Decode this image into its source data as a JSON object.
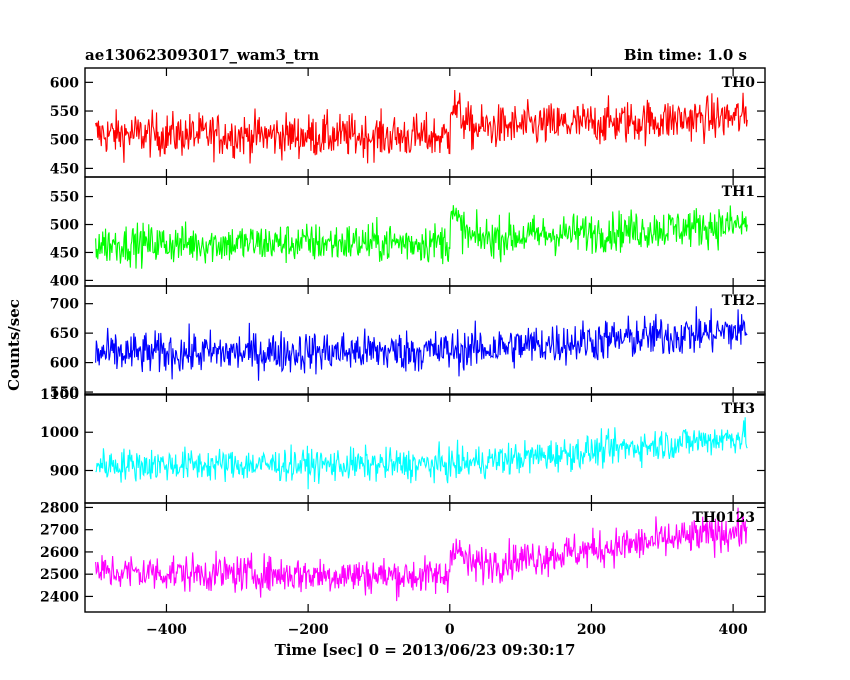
{
  "header": {
    "title": "ae130623093017_wam3_trn",
    "bin_time": "Bin time: 1.0 s"
  },
  "chart_data": {
    "type": "line",
    "xlabel": "Time [sec] 0 = 2013/06/23 09:30:17",
    "ylabel": "Counts/sec",
    "xlim": [
      -515,
      445
    ],
    "x_ticks": [
      -400,
      -200,
      0,
      200,
      400
    ],
    "x_tick_labels": [
      "−400",
      "−200",
      "0",
      "200",
      "400"
    ],
    "x_data_range": [
      -500,
      420
    ],
    "grid": false,
    "panels": [
      {
        "label": "TH0",
        "color": "#ff0000",
        "ylim": [
          435,
          625
        ],
        "yticks": [
          450,
          500,
          550,
          600
        ],
        "baseline": [
          [
            -500,
            510
          ],
          [
            0,
            505
          ],
          [
            1,
            565
          ],
          [
            30,
            520
          ],
          [
            420,
            540
          ]
        ],
        "noise": 32
      },
      {
        "label": "TH1",
        "color": "#00ff00",
        "ylim": [
          390,
          585
        ],
        "yticks": [
          400,
          450,
          500,
          550
        ],
        "baseline": [
          [
            -500,
            465
          ],
          [
            0,
            468
          ],
          [
            1,
            520
          ],
          [
            30,
            475
          ],
          [
            420,
            500
          ]
        ],
        "noise": 30
      },
      {
        "label": "TH2",
        "color": "#0000ff",
        "ylim": [
          545,
          730
        ],
        "yticks": [
          550,
          600,
          650,
          700
        ],
        "baseline": [
          [
            -500,
            615
          ],
          [
            0,
            620
          ],
          [
            420,
            655
          ]
        ],
        "noise": 30
      },
      {
        "label": "TH3",
        "color": "#00ffff",
        "ylim": [
          815,
          1100
        ],
        "yticks": [
          900,
          1000,
          1100
        ],
        "baseline": [
          [
            -500,
            915
          ],
          [
            0,
            915
          ],
          [
            420,
            990
          ]
        ],
        "noise": 36
      },
      {
        "label": "TH0123",
        "color": "#ff00ff",
        "ylim": [
          2330,
          2820
        ],
        "yticks": [
          2400,
          2500,
          2600,
          2700,
          2800
        ],
        "baseline": [
          [
            -500,
            2510
          ],
          [
            0,
            2490
          ],
          [
            1,
            2640
          ],
          [
            30,
            2540
          ],
          [
            420,
            2700
          ]
        ],
        "noise": 70
      }
    ]
  }
}
